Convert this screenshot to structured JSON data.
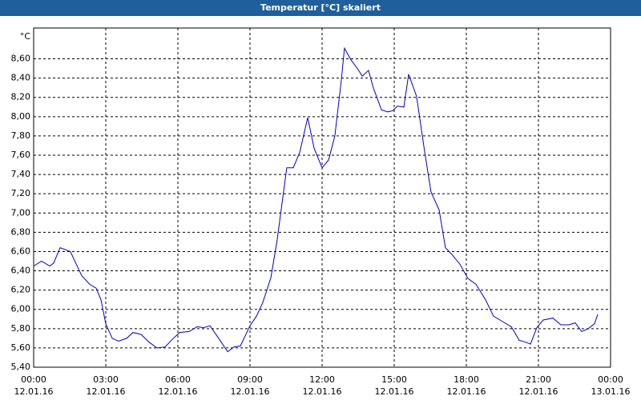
{
  "chart_data": {
    "type": "line",
    "title": "Temperatur [°C] skaliert",
    "y_unit": "°C",
    "x": [
      0,
      0.33,
      0.67,
      0.83,
      1.1,
      1.53,
      1.77,
      2,
      2.33,
      2.6,
      2.8,
      3,
      3.27,
      3.53,
      3.87,
      4.13,
      4.47,
      4.8,
      5.13,
      5.47,
      5.73,
      6.07,
      6.47,
      6.8,
      7.07,
      7.33,
      7.67,
      8.07,
      8.33,
      8.6,
      9,
      9.27,
      9.53,
      9.87,
      10.13,
      10.53,
      10.8,
      11.07,
      11.4,
      11.67,
      12,
      12.27,
      12.53,
      12.8,
      12.93,
      13.2,
      13.47,
      13.67,
      13.93,
      14.13,
      14.47,
      14.73,
      14.93,
      15.13,
      15.4,
      15.6,
      15.93,
      16.27,
      16.53,
      16.87,
      17.13,
      17.4,
      17.73,
      18.07,
      18.4,
      18.8,
      19.13,
      19.4,
      19.87,
      20.2,
      20.47,
      20.67,
      20.93,
      21.2,
      21.6,
      21.93,
      22.27,
      22.53,
      22.8,
      23.07,
      23.33,
      23.47
    ],
    "series": [
      {
        "name": "Temperatur",
        "color": "#0000c8",
        "values": [
          6.45,
          6.5,
          6.45,
          6.48,
          6.64,
          6.6,
          6.47,
          6.35,
          6.26,
          6.22,
          6.1,
          5.85,
          5.7,
          5.67,
          5.7,
          5.76,
          5.74,
          5.66,
          5.6,
          5.61,
          5.68,
          5.76,
          5.77,
          5.82,
          5.81,
          5.83,
          5.71,
          5.56,
          5.61,
          5.62,
          5.83,
          5.93,
          6.07,
          6.33,
          6.72,
          7.47,
          7.47,
          7.63,
          7.99,
          7.67,
          7.47,
          7.55,
          7.8,
          8.38,
          8.71,
          8.59,
          8.5,
          8.42,
          8.48,
          8.3,
          8.07,
          8.05,
          8.06,
          8.11,
          8.1,
          8.44,
          8.21,
          7.63,
          7.22,
          7.03,
          6.64,
          6.57,
          6.47,
          6.32,
          6.26,
          6.1,
          5.93,
          5.89,
          5.82,
          5.68,
          5.66,
          5.64,
          5.81,
          5.89,
          5.91,
          5.84,
          5.84,
          5.86,
          5.77,
          5.8,
          5.85,
          5.95
        ]
      }
    ],
    "xlim": [
      0,
      24
    ],
    "xticks": [
      {
        "value": 0,
        "label": "00:00"
      },
      {
        "value": 3,
        "label": "03:00"
      },
      {
        "value": 6,
        "label": "06:00"
      },
      {
        "value": 9,
        "label": "09:00"
      },
      {
        "value": 12,
        "label": "12:00"
      },
      {
        "value": 15,
        "label": "15:00"
      },
      {
        "value": 18,
        "label": "18:00"
      },
      {
        "value": 21,
        "label": "21:00"
      },
      {
        "value": 24,
        "label": "00:00"
      }
    ],
    "xtick_dates": [
      "12.01.16",
      "12.01.16",
      "12.01.16",
      "12.01.16",
      "12.01.16",
      "12.01.16",
      "12.01.16",
      "12.01.16",
      "13.01.16"
    ],
    "ylim": [
      5.4,
      8.92
    ],
    "yticks": [
      {
        "value": 5.4,
        "label": "5,40"
      },
      {
        "value": 5.6,
        "label": "5,60"
      },
      {
        "value": 5.8,
        "label": "5,80"
      },
      {
        "value": 6.0,
        "label": "6,00"
      },
      {
        "value": 6.2,
        "label": "6,20"
      },
      {
        "value": 6.4,
        "label": "6,40"
      },
      {
        "value": 6.6,
        "label": "6,60"
      },
      {
        "value": 6.8,
        "label": "6,80"
      },
      {
        "value": 7.0,
        "label": "7,00"
      },
      {
        "value": 7.2,
        "label": "7,20"
      },
      {
        "value": 7.4,
        "label": "7,40"
      },
      {
        "value": 7.6,
        "label": "7,60"
      },
      {
        "value": 7.8,
        "label": "7,80"
      },
      {
        "value": 8.0,
        "label": "8,00"
      },
      {
        "value": 8.2,
        "label": "8,20"
      },
      {
        "value": 8.4,
        "label": "8,40"
      },
      {
        "value": 8.6,
        "label": "8,60"
      }
    ],
    "grid": true
  }
}
